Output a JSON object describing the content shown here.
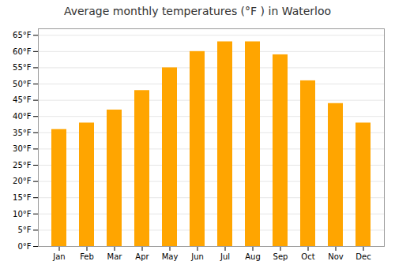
{
  "chart_data": {
    "type": "bar",
    "title": "Average monthly temperatures (°F ) in Waterloo",
    "categories": [
      "Jan",
      "Feb",
      "Mar",
      "Apr",
      "May",
      "Jun",
      "Jul",
      "Aug",
      "Sep",
      "Oct",
      "Nov",
      "Dec"
    ],
    "values": [
      36,
      38,
      42,
      48,
      55,
      60,
      63,
      63,
      59,
      51,
      44,
      38
    ],
    "color": "#FFA500",
    "ylim": [
      0,
      67
    ],
    "yticks": [
      {
        "value": 0,
        "label": "0°F"
      },
      {
        "value": 5,
        "label": "5°F"
      },
      {
        "value": 10,
        "label": "10°F"
      },
      {
        "value": 15,
        "label": "15°F"
      },
      {
        "value": 20,
        "label": "20°F"
      },
      {
        "value": 25,
        "label": "25°F"
      },
      {
        "value": 30,
        "label": "30°F"
      },
      {
        "value": 35,
        "label": "35°F"
      },
      {
        "value": 40,
        "label": "40°F"
      },
      {
        "value": 45,
        "label": "45°F"
      },
      {
        "value": 50,
        "label": "50°F"
      },
      {
        "value": 55,
        "label": "55°F"
      },
      {
        "value": 60,
        "label": "60°F"
      },
      {
        "value": 65,
        "label": "65°F"
      }
    ],
    "grid": true
  }
}
